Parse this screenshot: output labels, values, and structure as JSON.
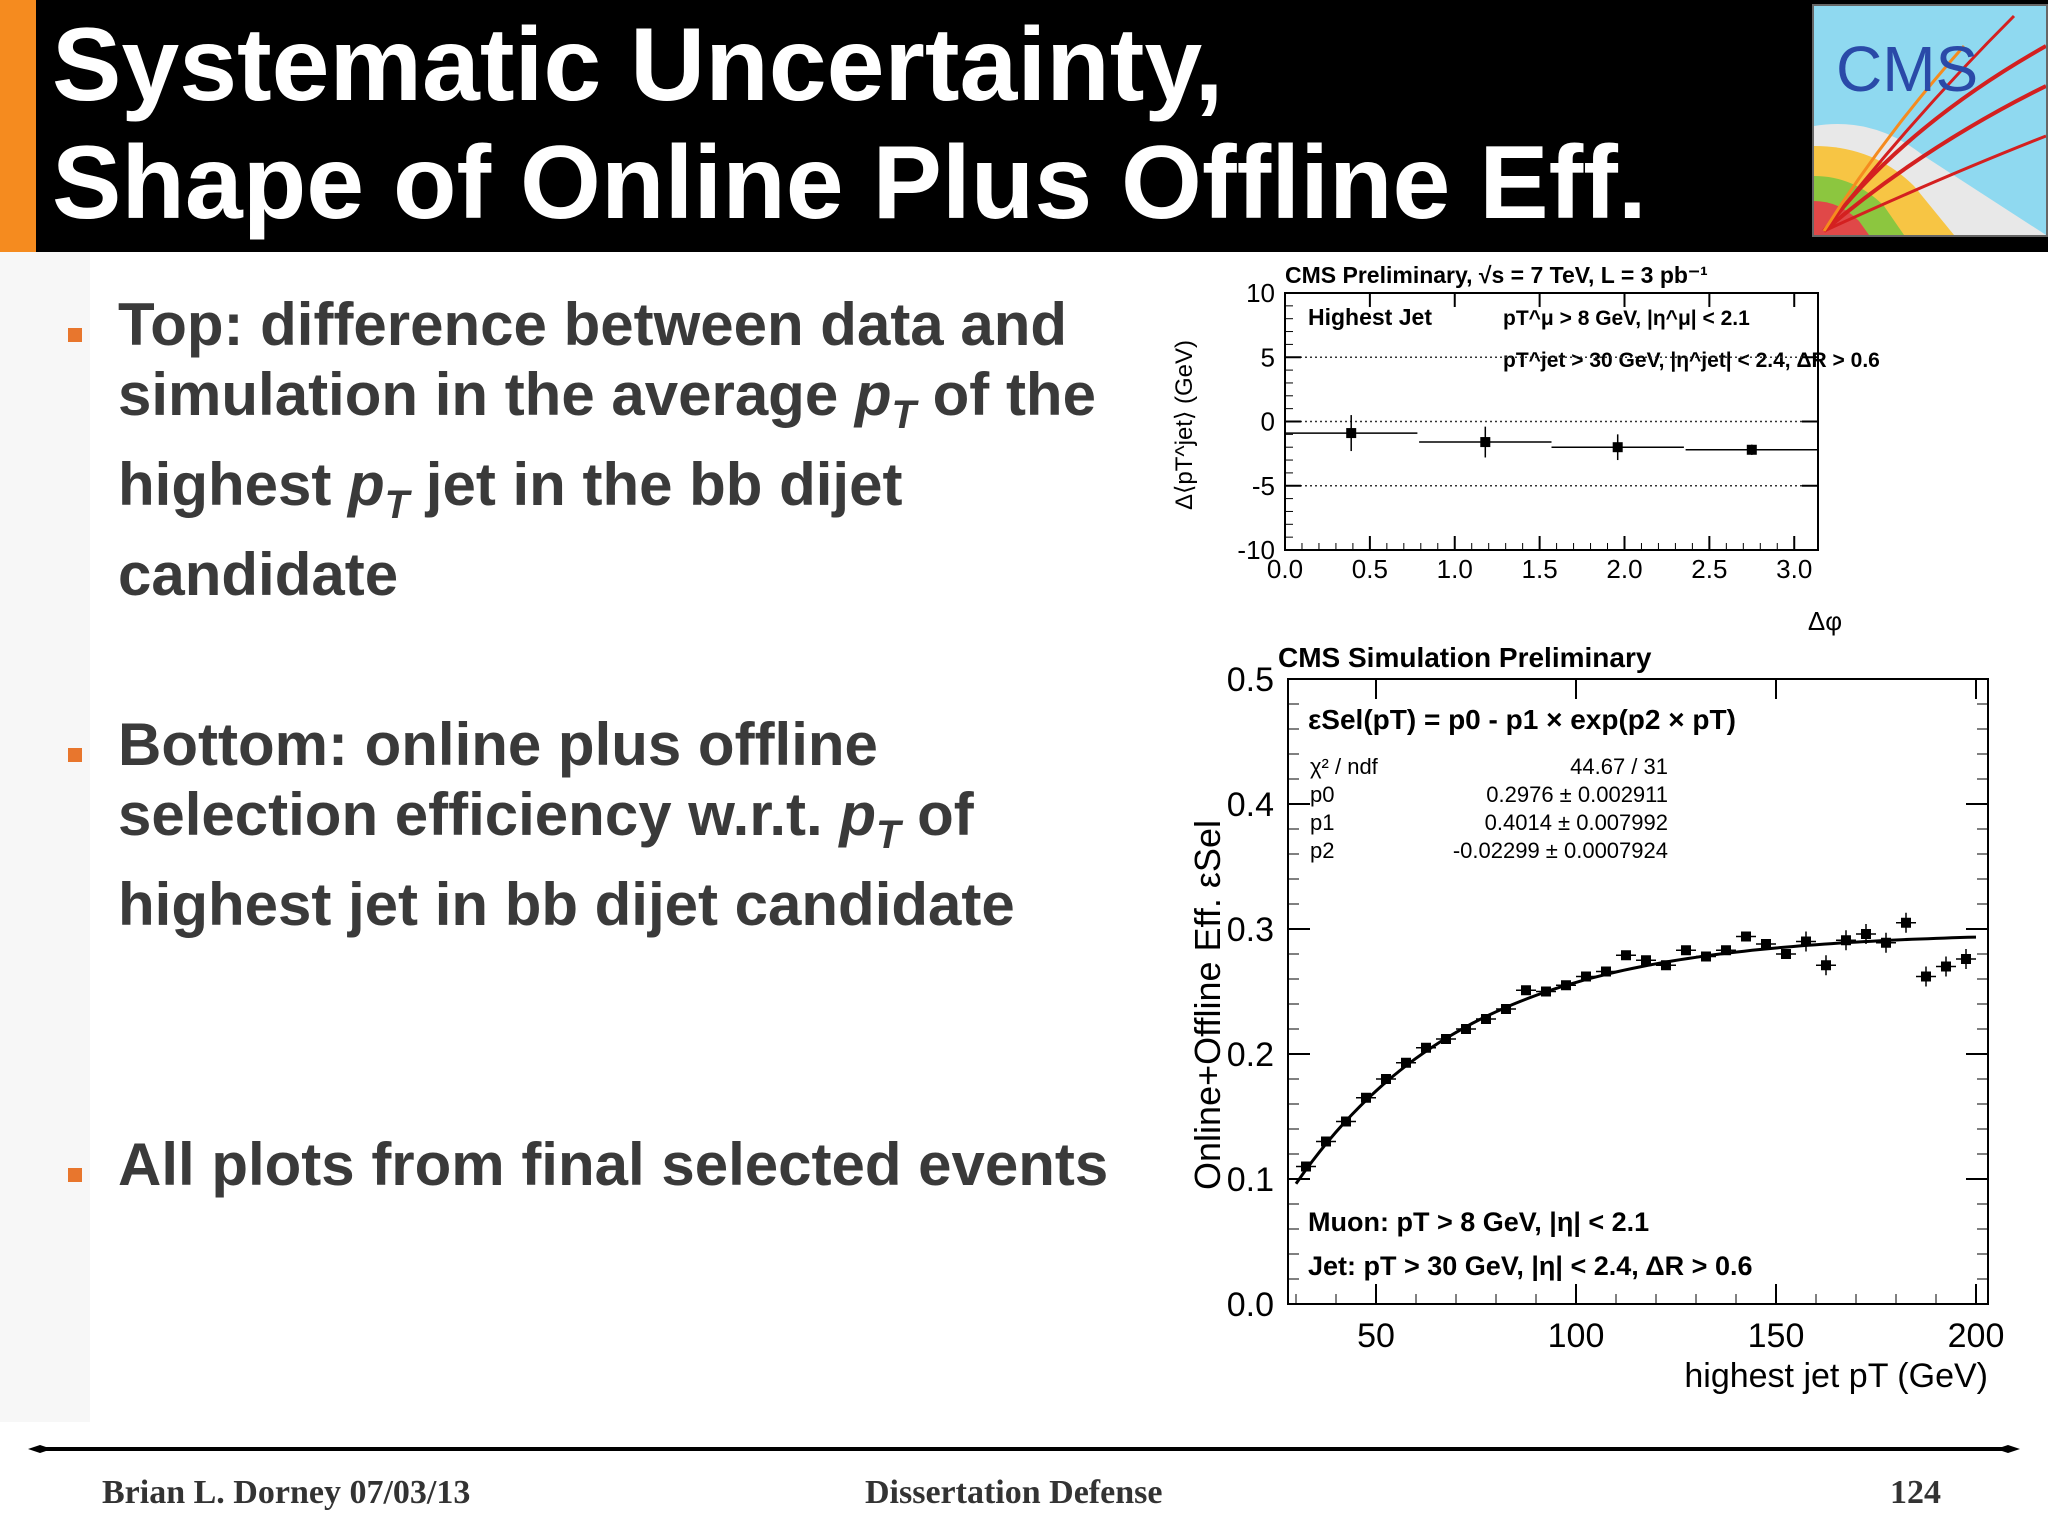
{
  "header": {
    "title_line1": "Systematic Uncertainty,",
    "title_line2": "Shape of Online Plus Offline Eff.",
    "logo_text": "CMS",
    "accent_color": "#f58b1f",
    "background": "#000000"
  },
  "bullets": [
    {
      "part1": "Top: difference between data and simulation in the average ",
      "sym1": "p",
      "sub1": "T",
      "part2": " of the highest ",
      "sym2": "p",
      "sub2": "T",
      "part3": " jet in the bb dijet candidate"
    },
    {
      "part1": "Bottom: online plus offline selection efficiency w.r.t. ",
      "sym1": "p",
      "sub1": "T",
      "part2": " of highest jet in bb dijet candidate"
    },
    {
      "part1": "All plots from final selected events"
    }
  ],
  "footer": {
    "left": "Brian L. Dorney 07/03/13",
    "center": "Dissertation Defense",
    "right": "124"
  },
  "chart_data": [
    {
      "type": "scatter",
      "title": "CMS Preliminary, √s = 7 TeV, L = 3 pb⁻¹",
      "legend_label": "Highest Jet",
      "annotation_line1": "pT^μ > 8 GeV, |η^μ| < 2.1",
      "annotation_line2": "pT^jet > 30 GeV, |η^jet| < 2.4, ΔR > 0.6",
      "xlabel": "Δφ",
      "ylabel": "Δ⟨pT^jet⟩ (GeV)",
      "xlim": [
        0.0,
        3.14
      ],
      "ylim": [
        -10,
        10
      ],
      "x_ticks": [
        "0.0",
        "0.5",
        "1.0",
        "1.5",
        "2.0",
        "2.5",
        "3.0"
      ],
      "y_ticks": [
        "10",
        "5",
        "0",
        "-5",
        "-10"
      ],
      "grid_y": [
        5,
        0,
        -5
      ],
      "points": [
        {
          "x": 0.39,
          "y": -0.9,
          "xerr": 0.39,
          "yerr": 1.4
        },
        {
          "x": 1.18,
          "y": -1.6,
          "xerr": 0.39,
          "yerr": 1.2
        },
        {
          "x": 1.96,
          "y": -2.0,
          "xerr": 0.39,
          "yerr": 1.0
        },
        {
          "x": 2.75,
          "y": -2.2,
          "xerr": 0.39,
          "yerr": 0.4
        }
      ]
    },
    {
      "type": "scatter",
      "title": "CMS Simulation Preliminary",
      "formula": "εSel(pT) = p0 - p1 × exp(p2 × pT)",
      "fit_params": [
        {
          "name": "χ² / ndf",
          "value": "44.67 / 31"
        },
        {
          "name": "p0",
          "value": "0.2976 ± 0.002911"
        },
        {
          "name": "p1",
          "value": "0.4014 ± 0.007992"
        },
        {
          "name": "p2",
          "value": "-0.02299 ± 0.0007924"
        }
      ],
      "fit": {
        "p0": 0.2976,
        "p1": 0.4014,
        "p2": -0.02299,
        "x_from": 30,
        "x_to": 200
      },
      "cut_line1": "Muon: pT > 8 GeV, |η| < 2.1",
      "cut_line2": "Jet: pT > 30 GeV, |η| < 2.4, ΔR > 0.6",
      "xlabel": "highest jet pT (GeV)",
      "ylabel": "Online+Offline Eff. εSel",
      "xlim": [
        28,
        203
      ],
      "ylim": [
        0.0,
        0.5
      ],
      "x_ticks": [
        "50",
        "100",
        "150",
        "200"
      ],
      "y_ticks": [
        "0.5",
        "0.4",
        "0.3",
        "0.2",
        "0.1",
        "0.0"
      ],
      "points": [
        {
          "x": 32.5,
          "y": 0.11
        },
        {
          "x": 37.5,
          "y": 0.13
        },
        {
          "x": 42.5,
          "y": 0.146
        },
        {
          "x": 47.5,
          "y": 0.165
        },
        {
          "x": 52.5,
          "y": 0.18
        },
        {
          "x": 57.5,
          "y": 0.193
        },
        {
          "x": 62.5,
          "y": 0.205
        },
        {
          "x": 67.5,
          "y": 0.212
        },
        {
          "x": 72.5,
          "y": 0.22
        },
        {
          "x": 77.5,
          "y": 0.228
        },
        {
          "x": 82.5,
          "y": 0.236
        },
        {
          "x": 87.5,
          "y": 0.251
        },
        {
          "x": 92.5,
          "y": 0.25
        },
        {
          "x": 97.5,
          "y": 0.255
        },
        {
          "x": 102.5,
          "y": 0.262
        },
        {
          "x": 107.5,
          "y": 0.266
        },
        {
          "x": 112.5,
          "y": 0.279
        },
        {
          "x": 117.5,
          "y": 0.275
        },
        {
          "x": 122.5,
          "y": 0.271
        },
        {
          "x": 127.5,
          "y": 0.283
        },
        {
          "x": 132.5,
          "y": 0.278
        },
        {
          "x": 137.5,
          "y": 0.283
        },
        {
          "x": 142.5,
          "y": 0.294
        },
        {
          "x": 147.5,
          "y": 0.288
        },
        {
          "x": 152.5,
          "y": 0.28
        },
        {
          "x": 157.5,
          "y": 0.29
        },
        {
          "x": 162.5,
          "y": 0.271
        },
        {
          "x": 167.5,
          "y": 0.291
        },
        {
          "x": 172.5,
          "y": 0.296
        },
        {
          "x": 177.5,
          "y": 0.289
        },
        {
          "x": 182.5,
          "y": 0.305
        },
        {
          "x": 187.5,
          "y": 0.262
        },
        {
          "x": 192.5,
          "y": 0.27
        },
        {
          "x": 197.5,
          "y": 0.276
        }
      ]
    }
  ]
}
